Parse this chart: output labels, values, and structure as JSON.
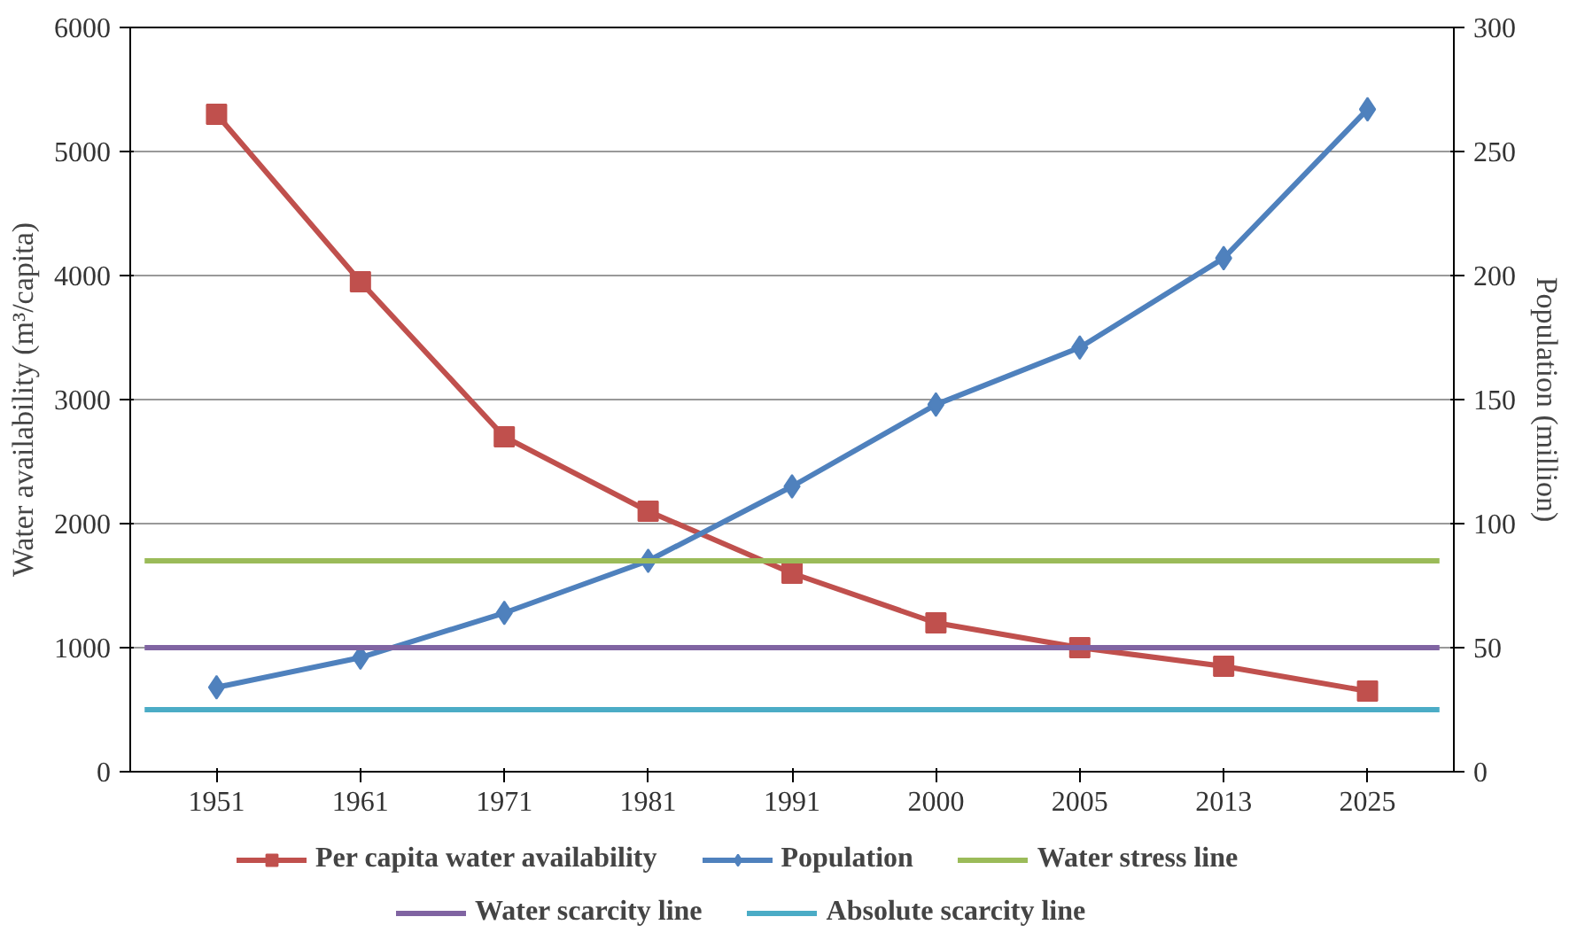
{
  "chart_data": {
    "type": "line",
    "categories": [
      "1951",
      "1961",
      "1971",
      "1981",
      "1991",
      "2000",
      "2005",
      "2013",
      "2025"
    ],
    "ylabel": "Water availability (m³/capita)",
    "y2label": "Population (million)",
    "series": [
      {
        "name": "Per capita water availability",
        "color": "#c0504d",
        "marker": "square",
        "values": [
          5300,
          3950,
          2700,
          2100,
          1600,
          1200,
          1000,
          850,
          650
        ]
      },
      {
        "name": "Population",
        "color": "#4f81bd",
        "marker": "diamond",
        "axis": "y2",
        "values": [
          34,
          46,
          64,
          85,
          115,
          148,
          171,
          207,
          267
        ]
      }
    ],
    "ref_lines": [
      {
        "axis": "y",
        "value": 1700,
        "label": "Water stress line",
        "color": "#9bbb59"
      },
      {
        "axis": "y",
        "value": 1000,
        "label": "Water scarcity line",
        "color": "#8064a2"
      },
      {
        "axis": "y",
        "value": 500,
        "label": "Absolute scarcity line",
        "color": "#4bacc6"
      }
    ],
    "ylim": [
      0,
      6000
    ],
    "yticks": [
      0,
      1000,
      2000,
      3000,
      4000,
      5000,
      6000
    ],
    "y2lim": [
      0,
      300
    ],
    "y2ticks": [
      0,
      50,
      100,
      150,
      200,
      250,
      300
    ],
    "grid": "y",
    "legend": "bottom"
  }
}
